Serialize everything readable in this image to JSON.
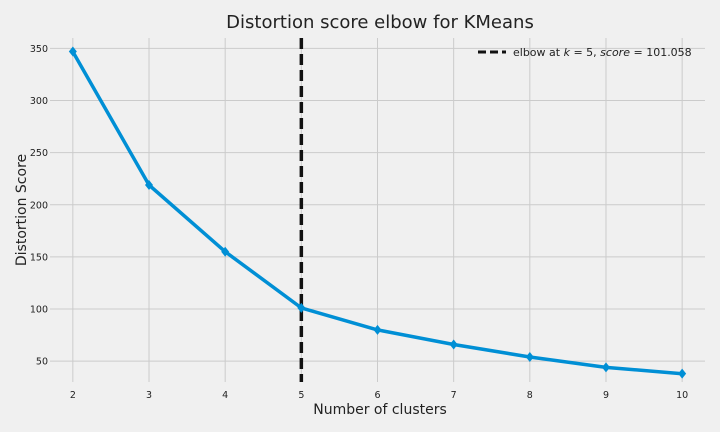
{
  "chart_data": {
    "type": "line",
    "title": "Distortion score elbow for KMeans",
    "xlabel": "Number of clusters",
    "ylabel": "Distortion Score",
    "x": [
      2,
      3,
      4,
      5,
      6,
      7,
      8,
      9,
      10
    ],
    "series": [
      {
        "values": [
          347,
          219,
          155,
          101.058,
          80,
          66,
          54,
          44,
          38
        ],
        "color": "#008fd5",
        "marker": "diamond"
      }
    ],
    "elbow": {
      "k": 5,
      "score": 101.058,
      "color": "#111111",
      "style": "dashed",
      "legend": {
        "prefix": "elbow at ",
        "k_var": "k",
        "eq1": " = 5, ",
        "score_var": "score",
        "eq2": " = 101.058"
      }
    },
    "xlim": [
      1.7,
      10.3
    ],
    "ylim": [
      30,
      360
    ],
    "xticks": [
      "2",
      "3",
      "4",
      "5",
      "6",
      "7",
      "8",
      "9",
      "10"
    ],
    "xtick_values": [
      2,
      3,
      4,
      5,
      6,
      7,
      8,
      9,
      10
    ],
    "yticks": [
      "50",
      "100",
      "150",
      "200",
      "250",
      "300",
      "350"
    ],
    "ytick_values": [
      50,
      100,
      150,
      200,
      250,
      300,
      350
    ],
    "grid": true,
    "legend_position": "top-right",
    "background": "#f0f0f0"
  }
}
